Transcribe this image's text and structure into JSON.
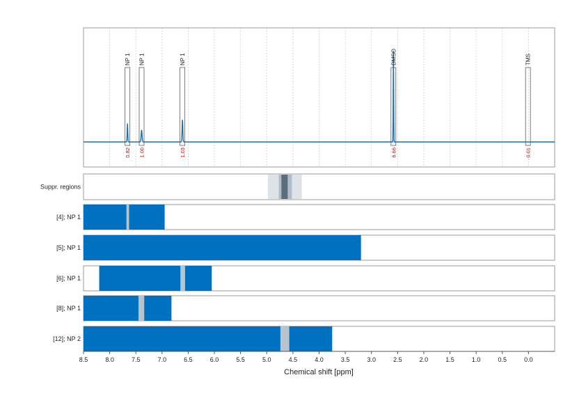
{
  "chart_data": {
    "type": "line",
    "xlabel": "Chemical shift [ppm]",
    "xlim": [
      8.5,
      -0.5
    ],
    "x_reversed": true,
    "ticks": [
      "8.5",
      "8.0",
      "7.5",
      "7.0",
      "6.5",
      "6.0",
      "5.5",
      "5.0",
      "4.5",
      "4.0",
      "3.5",
      "3.0",
      "2.5",
      "2.0",
      "1.5",
      "1.0",
      "0.5",
      "0.0"
    ],
    "grid": true,
    "colors": {
      "spectrum": "#1f6fb4",
      "bar": "#0070c0",
      "gap": "#b8c4cc",
      "integral": "#d00000",
      "supp_outer": "#dde3e8",
      "supp_mid": "#b0bcc6",
      "supp_inner": "#5c6e7e"
    },
    "peaks": [
      {
        "label": "NP 1",
        "ppm": 7.66,
        "integral": "0.82",
        "height": 0.14
      },
      {
        "label": "NP 1",
        "ppm": 7.39,
        "integral": "1.00",
        "height": 0.09
      },
      {
        "label": "NP 1",
        "ppm": 6.61,
        "integral": "1.03",
        "height": 0.17
      },
      {
        "label": "DMSO",
        "ppm": 2.58,
        "integral": "6.66",
        "height": 0.69
      },
      {
        "label": "TMS",
        "ppm": 0.01,
        "integral": "0.01",
        "height": 0.0
      }
    ],
    "suppressed_regions": {
      "label": "Suppr. regions",
      "outer": [
        4.98,
        4.33
      ],
      "mid": [
        4.77,
        4.52
      ],
      "inner": [
        4.72,
        4.6
      ]
    },
    "range_rows": [
      {
        "label": "[4]; NP 1",
        "range": [
          8.5,
          6.95
        ],
        "gaps": [
          [
            7.68,
            7.63
          ]
        ]
      },
      {
        "label": "[5]; NP 1",
        "range": [
          8.5,
          3.2
        ],
        "gaps": []
      },
      {
        "label": "[6]; NP 1",
        "range": [
          8.2,
          6.05
        ],
        "gaps": [
          [
            6.65,
            6.56
          ]
        ]
      },
      {
        "label": "[8]; NP 1",
        "range": [
          8.5,
          6.82
        ],
        "gaps": [
          [
            7.45,
            7.34
          ]
        ]
      },
      {
        "label": "[12]; NP 2",
        "range": [
          8.5,
          3.75
        ],
        "gaps": [
          [
            4.74,
            4.57
          ]
        ]
      }
    ]
  }
}
